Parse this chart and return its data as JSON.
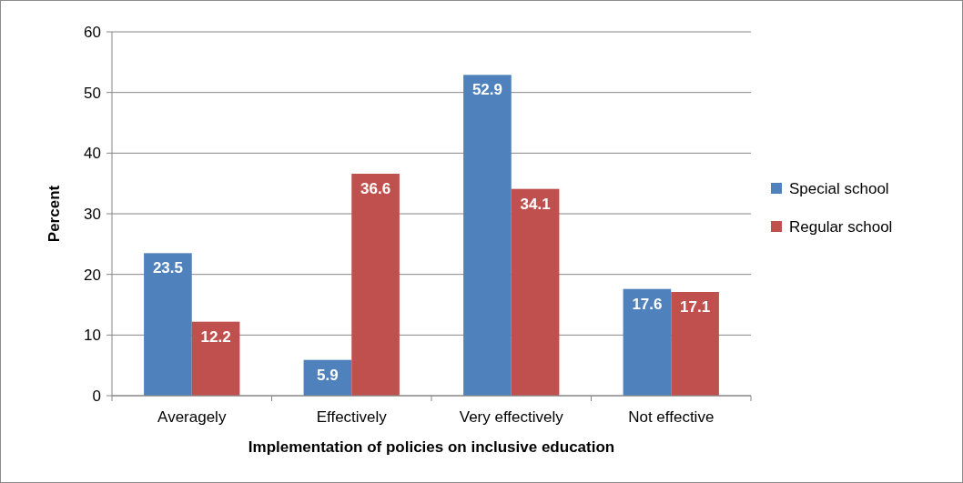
{
  "chart_data": {
    "type": "bar",
    "xlabel": "Implementation of policies on inclusive education",
    "ylabel": "Percent",
    "categories": [
      "Averagely",
      "Effectively",
      "Very effectively",
      "Not effective"
    ],
    "series": [
      {
        "name": "Special school",
        "color": "#4f81bd",
        "values": [
          23.5,
          5.9,
          52.9,
          17.6
        ]
      },
      {
        "name": "Regular school",
        "color": "#c0504d",
        "values": [
          12.2,
          36.6,
          34.1,
          17.1
        ]
      }
    ],
    "ylim": [
      0,
      60
    ],
    "yticks": [
      0,
      10,
      20,
      30,
      40,
      50,
      60
    ],
    "grid": "y",
    "legend": "right",
    "data_labels": true
  }
}
